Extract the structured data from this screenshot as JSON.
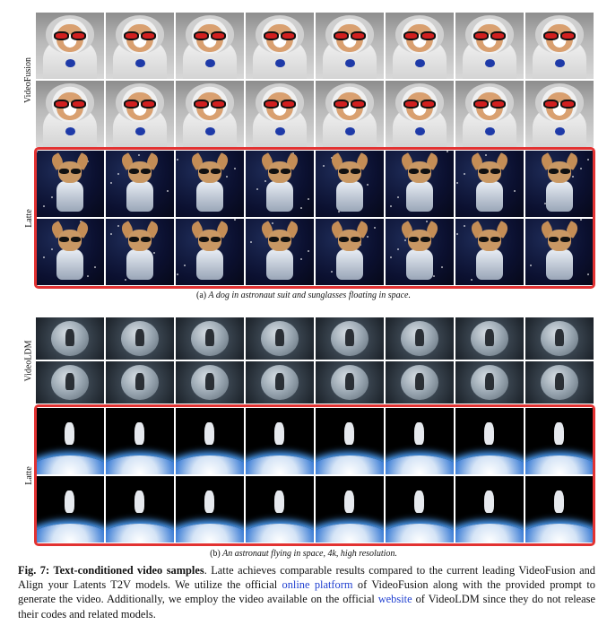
{
  "panel_a": {
    "row_label_top": "VideoFusion",
    "row_label_bottom": "Latte",
    "caption_label": "(a)",
    "caption_text": "A dog in astronaut suit and sunglasses floating in space."
  },
  "panel_b": {
    "row_label_top": "VideoLDM",
    "row_label_bottom": "Latte",
    "caption_label": "(b)",
    "caption_text": "An astronaut flying in space, 4k, high resolution."
  },
  "figure_caption": {
    "label": "Fig. 7",
    "title": "Text-conditioned video samples",
    "text_1": ". Latte achieves comparable results compared to the current leading VideoFusion and Align your Latents T2V models. We utilize the official ",
    "link_1": "online platform",
    "text_2": " of VideoFusion along with the provided prompt to generate the video. Additionally, we employ the video available on the official ",
    "link_2": "website",
    "text_3": " of VideoLDM since they do not release their codes and related models."
  },
  "colors": {
    "highlight_border": "#e23232",
    "link": "#1f3fd0"
  }
}
